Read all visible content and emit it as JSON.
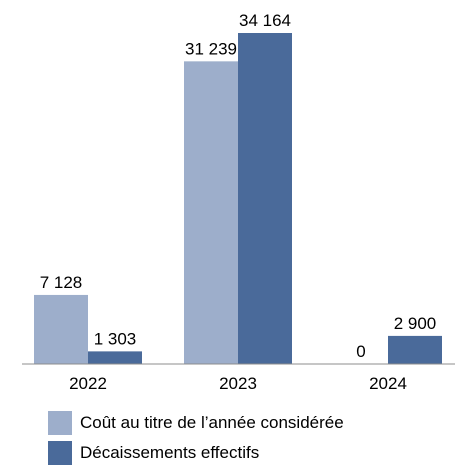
{
  "chart_data": {
    "type": "bar",
    "title": "",
    "xlabel": "",
    "ylabel": "",
    "categories": [
      "2022",
      "2023",
      "2024"
    ],
    "series": [
      {
        "name": "Coût au titre de l’année considérée",
        "values": [
          7128,
          31239,
          0
        ],
        "labels": [
          "7 128",
          "31 239",
          "0"
        ],
        "color": "#9daecb"
      },
      {
        "name": "Décaissements effectifs",
        "values": [
          1303,
          34164,
          2900
        ],
        "labels": [
          "1 303",
          "34 164",
          "2 900"
        ],
        "color": "#4a6a9a"
      }
    ],
    "ylim": [
      0,
      34164
    ],
    "grid": false,
    "legend_position": "bottom-left"
  }
}
